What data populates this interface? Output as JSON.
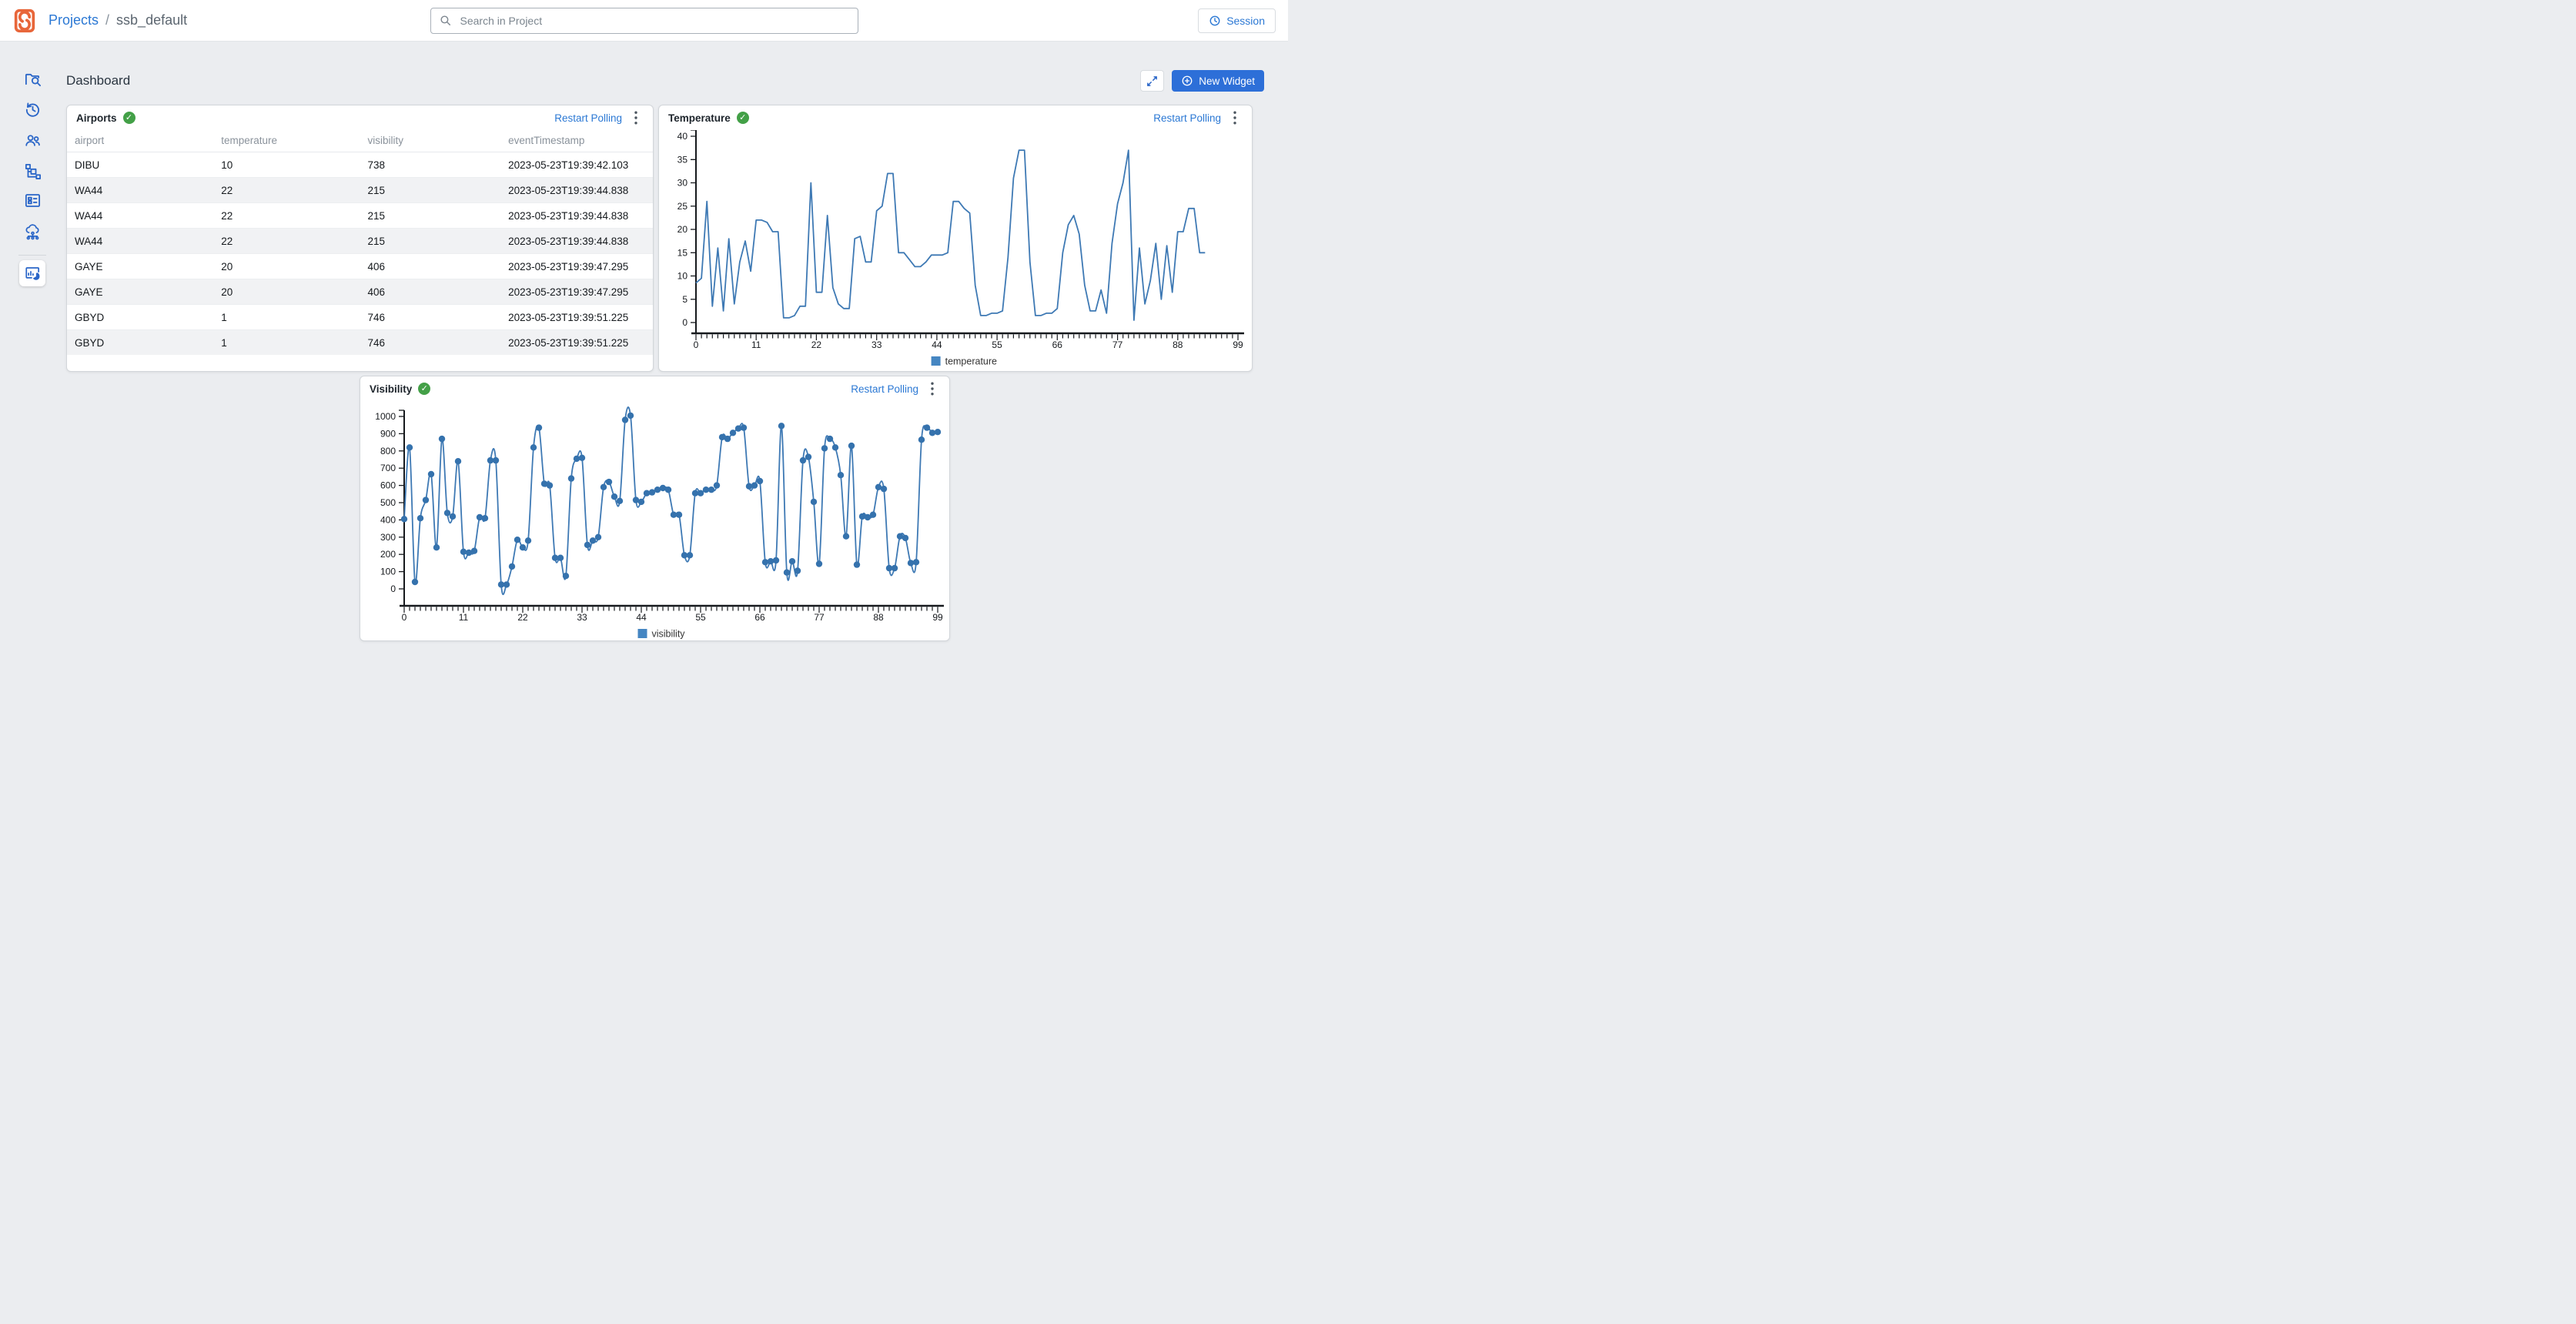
{
  "header": {
    "breadcrumb": {
      "projects": "Projects",
      "separator": "/",
      "project": "ssb_default"
    },
    "search_placeholder": "Search in Project",
    "session_label": "Session"
  },
  "sidebar": {
    "items": [
      {
        "icon": "folder-search",
        "active": false
      },
      {
        "icon": "history-clock",
        "active": false
      },
      {
        "icon": "users",
        "active": false
      },
      {
        "icon": "flow-tree",
        "active": false
      },
      {
        "icon": "form-editor",
        "active": false
      },
      {
        "icon": "cloud-cluster",
        "active": false
      },
      {
        "icon": "monitoring-chart",
        "active": true
      }
    ]
  },
  "main": {
    "title": "Dashboard",
    "new_widget_label": "New Widget"
  },
  "widgets": {
    "airports": {
      "title": "Airports",
      "status_icon": "check-circle-green",
      "restart_label": "Restart Polling",
      "columns": [
        "airport",
        "temperature",
        "visibility",
        "eventTimestamp"
      ],
      "rows": [
        [
          "DIBU",
          "10",
          "738",
          "2023-05-23T19:39:42.103"
        ],
        [
          "WA44",
          "22",
          "215",
          "2023-05-23T19:39:44.838"
        ],
        [
          "WA44",
          "22",
          "215",
          "2023-05-23T19:39:44.838"
        ],
        [
          "WA44",
          "22",
          "215",
          "2023-05-23T19:39:44.838"
        ],
        [
          "GAYE",
          "20",
          "406",
          "2023-05-23T19:39:47.295"
        ],
        [
          "GAYE",
          "20",
          "406",
          "2023-05-23T19:39:47.295"
        ],
        [
          "GBYD",
          "1",
          "746",
          "2023-05-23T19:39:51.225"
        ],
        [
          "GBYD",
          "1",
          "746",
          "2023-05-23T19:39:51.225"
        ]
      ]
    },
    "temperature": {
      "title": "Temperature",
      "status_icon": "check-circle-green",
      "restart_label": "Restart Polling"
    },
    "visibility": {
      "title": "Visibility",
      "status_icon": "check-circle-green",
      "restart_label": "Restart Polling"
    }
  },
  "chart_data": [
    {
      "type": "line",
      "title": "Temperature",
      "xlabel": "",
      "ylabel": "",
      "xlim": [
        0,
        99
      ],
      "ylim": [
        0,
        40
      ],
      "ytick_step": 5,
      "xticks": [
        0,
        11,
        22,
        33,
        44,
        55,
        66,
        77,
        88,
        99
      ],
      "grid": false,
      "smooth": false,
      "markers": false,
      "legend_position": "bottom",
      "series": [
        {
          "name": "temperature",
          "values": [
            8.5,
            9.5,
            26,
            3.5,
            16,
            2.5,
            18,
            4,
            13,
            17.5,
            11,
            22,
            22,
            21.5,
            19.5,
            19.5,
            1,
            1,
            1.5,
            3.5,
            3.5,
            30,
            6.5,
            6.5,
            23,
            7.5,
            4,
            3,
            3,
            18,
            18.5,
            13,
            13,
            24,
            25,
            32,
            32,
            15,
            15,
            13.5,
            12,
            12,
            13,
            14.5,
            14.5,
            14.5,
            15,
            26,
            26,
            24.5,
            23.5,
            8,
            1.5,
            1.5,
            2,
            2,
            2.5,
            14,
            31,
            37,
            37,
            13,
            1.5,
            1.5,
            2,
            2,
            3,
            15,
            21,
            23,
            19,
            8,
            2.5,
            2.5,
            7,
            2,
            17,
            25.5,
            30,
            37,
            0.5,
            16,
            4,
            9,
            17,
            5,
            16.5,
            6.5,
            19.5,
            19.5,
            24.5,
            24.5,
            15,
            15
          ]
        }
      ]
    },
    {
      "type": "line",
      "title": "Visibility",
      "xlabel": "",
      "ylabel": "",
      "xlim": [
        0,
        99
      ],
      "ylim": [
        0,
        1000
      ],
      "ytick_step": 100,
      "xticks": [
        0,
        11,
        22,
        33,
        44,
        55,
        66,
        77,
        88,
        99
      ],
      "grid": false,
      "smooth": true,
      "markers": true,
      "legend_position": "bottom",
      "series": [
        {
          "name": "visibility",
          "values": [
            405,
            820,
            40,
            410,
            515,
            665,
            240,
            870,
            440,
            420,
            740,
            215,
            210,
            220,
            415,
            410,
            745,
            745,
            25,
            25,
            130,
            285,
            240,
            280,
            820,
            935,
            610,
            600,
            180,
            180,
            75,
            640,
            755,
            760,
            255,
            280,
            300,
            590,
            620,
            535,
            510,
            980,
            1005,
            515,
            505,
            555,
            560,
            575,
            585,
            575,
            430,
            430,
            195,
            195,
            555,
            555,
            575,
            575,
            600,
            880,
            870,
            905,
            930,
            935,
            595,
            600,
            625,
            155,
            160,
            165,
            945,
            95,
            160,
            105,
            745,
            765,
            505,
            145,
            815,
            870,
            820,
            660,
            305,
            830,
            140,
            420,
            415,
            430,
            590,
            580,
            120,
            120,
            305,
            295,
            150,
            155,
            865,
            935,
            905,
            910
          ]
        }
      ]
    }
  ],
  "colors": {
    "accent": "#2d6fd8",
    "link": "#2b78d4",
    "orange": "#e8663a",
    "icon_blue": "#2a66c8",
    "green": "#43a047",
    "chart_line": "#3e79b4",
    "chart_marker": "#3572ad",
    "legend_swatch": "#4586c2"
  }
}
